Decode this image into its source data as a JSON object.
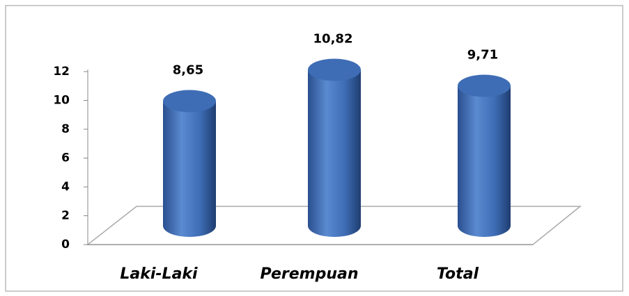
{
  "chart_data": {
    "type": "bar3d",
    "categories": [
      "Laki-Laki",
      "Perempuan",
      "Total"
    ],
    "values": [
      8.65,
      10.82,
      9.71
    ],
    "value_labels": [
      "8,65",
      "10,82",
      "9,71"
    ],
    "color": "#3e6db5",
    "ylim": [
      0,
      12
    ],
    "yticks": [
      0,
      2,
      4,
      6,
      8,
      10,
      12
    ]
  }
}
